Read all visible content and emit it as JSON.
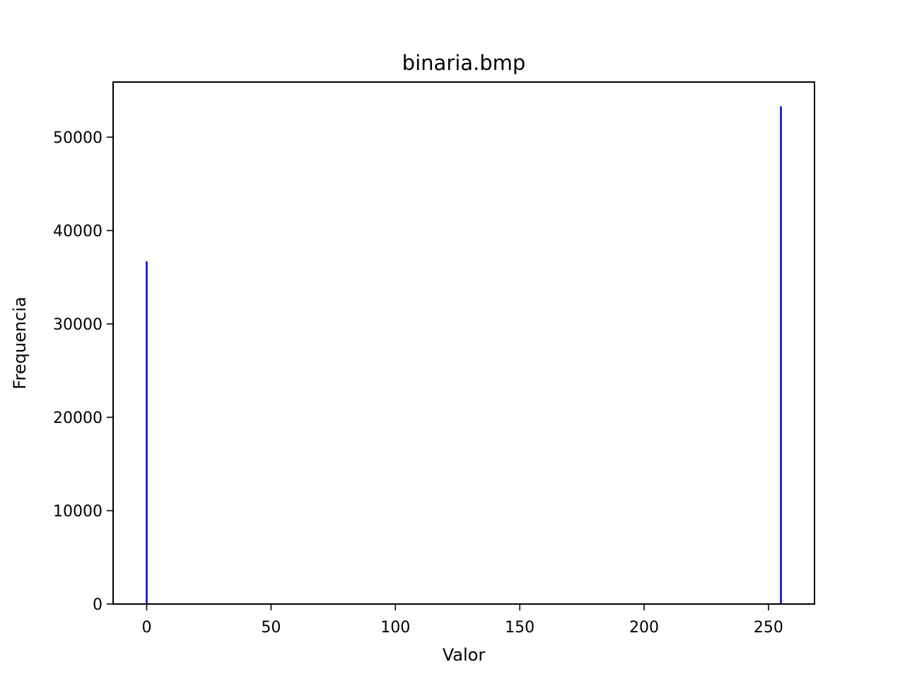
{
  "chart_data": {
    "type": "bar",
    "title": "binaria.bmp",
    "xlabel": "Valor",
    "ylabel": "Frequencia",
    "x": [
      0,
      255
    ],
    "values": [
      36700,
      53300
    ],
    "xlim": [
      -13.5,
      268.5
    ],
    "ylim": [
      0,
      55900
    ],
    "xticks": [
      0,
      50,
      100,
      150,
      200,
      250
    ],
    "xtick_labels": [
      "0",
      "50",
      "100",
      "150",
      "200",
      "250"
    ],
    "yticks": [
      0,
      10000,
      20000,
      30000,
      40000,
      50000
    ],
    "ytick_labels": [
      "0",
      "10000",
      "20000",
      "30000",
      "40000",
      "50000"
    ],
    "grid": false,
    "legend": "none",
    "bar_color": "#0000cc"
  }
}
